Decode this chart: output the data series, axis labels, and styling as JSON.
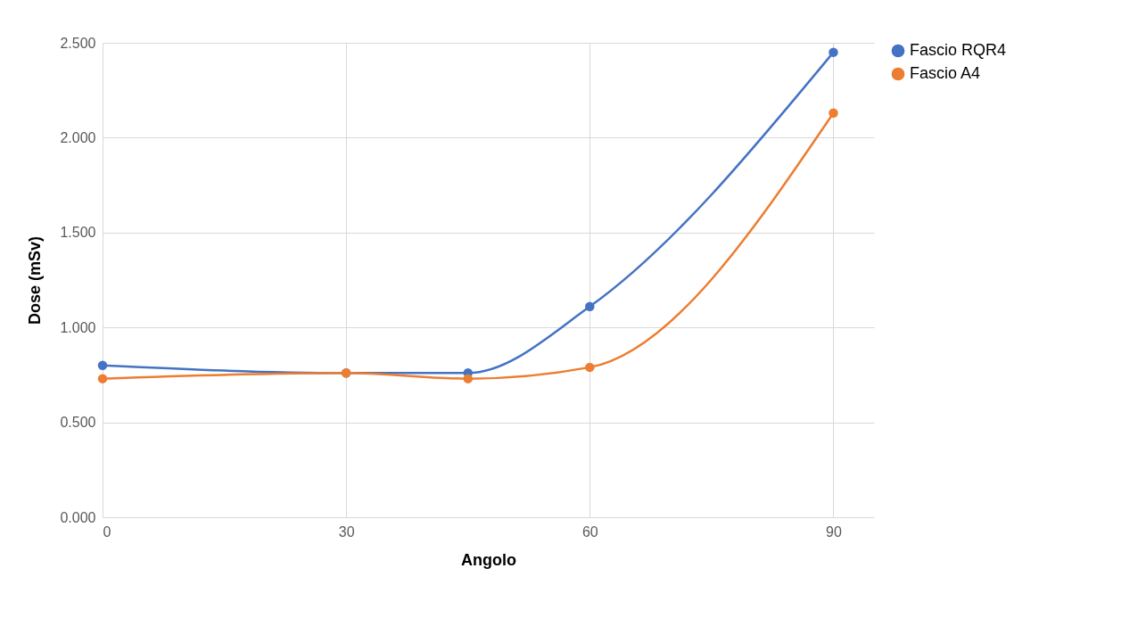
{
  "chart_data": {
    "type": "line",
    "xlabel": "Angolo",
    "ylabel": "Dose (mSv)",
    "x": [
      0,
      30,
      45,
      60,
      90
    ],
    "series": [
      {
        "name": "Fascio RQR4",
        "color": "#4472c4",
        "values": [
          0.8,
          0.76,
          0.76,
          1.11,
          2.45
        ]
      },
      {
        "name": "Fascio A4",
        "color": "#ed7d31",
        "values": [
          0.73,
          0.76,
          0.73,
          0.79,
          2.13
        ]
      }
    ],
    "xlim": [
      0,
      95
    ],
    "xticks": [
      0,
      30,
      60,
      90
    ],
    "ylim": [
      0,
      2.5
    ],
    "yticks": [
      {
        "value": 0,
        "label": "0.000"
      },
      {
        "value": 0.5,
        "label": "0.500"
      },
      {
        "value": 1,
        "label": "1.000"
      },
      {
        "value": 1.5,
        "label": "1.500"
      },
      {
        "value": 2,
        "label": "2.000"
      },
      {
        "value": 2.5,
        "label": "2.500"
      }
    ],
    "grid": true,
    "legend": "right",
    "marker": "circle",
    "line_style": "solid"
  }
}
